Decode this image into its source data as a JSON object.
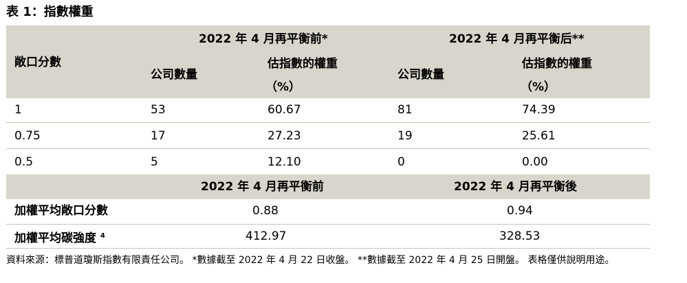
{
  "title": "表 1：指數權重",
  "header": {
    "group_before": "2022 年 4 月再平衡前*",
    "group_after": "2022 年 4 月再平衡后**",
    "col_exposure": "敞口分數",
    "col_count_before": "公司數量",
    "col_weight_before_line1": "估指數的權重",
    "col_weight_before_line2": "（%）",
    "col_count_after": "公司數量",
    "col_weight_after_line1": "估指數的權重",
    "col_weight_after_line2": "（%）"
  },
  "rows": [
    {
      "exposure": "1",
      "count_before": "53",
      "weight_before": "60.67",
      "count_after": "81",
      "weight_after": "74.39"
    },
    {
      "exposure": "0.75",
      "count_before": "17",
      "weight_before": "27.23",
      "count_after": "19",
      "weight_after": "25.61"
    },
    {
      "exposure": "0.5",
      "count_before": "5",
      "weight_before": "12.10",
      "count_after": "0",
      "weight_after": "0.00"
    }
  ],
  "summary_header": {
    "before": "2022 年 4 月再平衡前",
    "after": "2022 年 4 月再平衡後"
  },
  "summary_rows": [
    {
      "label": "加權平均敞口分數",
      "sup": "",
      "before": "0.88",
      "after": "0.94"
    },
    {
      "label": "加權平均碳強度",
      "sup": "4",
      "before": "412.97",
      "after": "328.53"
    }
  ],
  "footnote": "資料來源：標普道瓊斯指數有限責任公司。 *數據截至 2022 年 4 月 22 日收盤。 **數據截至 2022 年 4 月 25 日開盤。 表格僅供說明用途。"
}
